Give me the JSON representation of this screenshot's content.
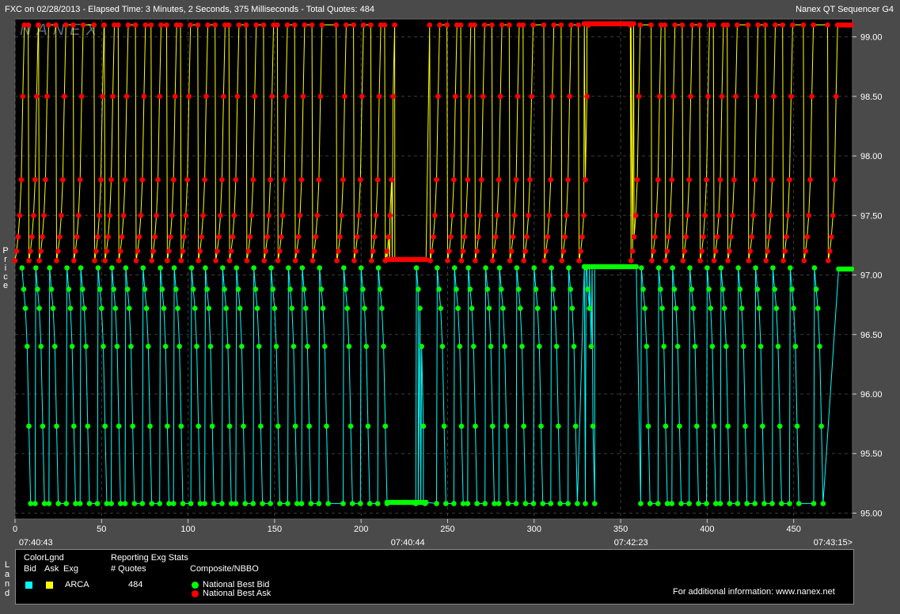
{
  "header": {
    "left": "FXC on 02/28/2013  -  Elapsed Time: 3 Minutes, 2 Seconds, 375 Milliseconds  -  Total Quotes: 484",
    "right": "Nanex QT Sequencer G4",
    "watermark": "NANEX"
  },
  "y_axis_label": "Price",
  "legend": {
    "side_label": "Land",
    "color_legend_title": "ColorLgnd",
    "col_bid": "Bid",
    "col_ask": "Ask",
    "col_exg": "Exg",
    "exchange": "ARCA",
    "bid_color": "#00ffff",
    "ask_color": "#ffff00",
    "stats_title": "Reporting Exg Stats",
    "quotes_header": "# Quotes",
    "quotes_value": "484",
    "composite_title": "Composite/NBBO",
    "nbb_label": "National Best Bid",
    "nbo_label": "National Best Ask",
    "nbb_color": "#00ff00",
    "nbo_color": "#ff0000",
    "info": "For additional information: www.nanex.net"
  },
  "chart_data": {
    "type": "line",
    "xlim": [
      0,
      484
    ],
    "ylim": [
      94.95,
      99.15
    ],
    "x_ticks": [
      0,
      50,
      100,
      150,
      200,
      250,
      300,
      350,
      400,
      450
    ],
    "y_ticks": [
      "95.00",
      "95.50",
      "96.00",
      "96.50",
      "97.00",
      "97.50",
      "98.00",
      "98.50",
      "99.00"
    ],
    "time_labels": [
      {
        "x": 12,
        "label": "07:40:43"
      },
      {
        "x": 227,
        "label": "07:40:44"
      },
      {
        "x": 356,
        "label": "07:42:23"
      },
      {
        "x": 484,
        "label": "07:43:15>"
      }
    ],
    "ask_cycle_starts": [
      0,
      8,
      14,
      24,
      34,
      46,
      52,
      60,
      70,
      79,
      88,
      96,
      106,
      116,
      124,
      134,
      144,
      152,
      162,
      172,
      186,
      196,
      206,
      214,
      240,
      250,
      258,
      266,
      276,
      286,
      294,
      306,
      316,
      326,
      356,
      368,
      376,
      386,
      396,
      404,
      412,
      424,
      434,
      444,
      456,
      470
    ],
    "bid_cycle_starts": [
      4,
      12,
      20,
      30,
      38,
      48,
      56,
      64,
      74,
      84,
      92,
      102,
      110,
      120,
      128,
      138,
      148,
      158,
      166,
      176,
      190,
      200,
      210,
      232,
      244,
      254,
      262,
      272,
      280,
      290,
      300,
      310,
      320,
      330,
      362,
      372,
      380,
      390,
      400,
      408,
      418,
      428,
      438,
      448,
      462
    ],
    "ask_cycle_levels": [
      97.12,
      97.2,
      97.32,
      97.5,
      97.8,
      98.5,
      99.1
    ],
    "bid_cycle_levels": [
      97.06,
      96.88,
      96.72,
      96.4,
      95.73,
      95.08
    ],
    "flat_ask_segments": [
      [
        215,
        238,
        97.13
      ],
      [
        329,
        358,
        99.11
      ],
      [
        476,
        484,
        99.1
      ]
    ],
    "flat_bid_segments": [
      [
        215,
        238,
        95.09
      ],
      [
        329,
        360,
        97.07
      ],
      [
        476,
        484,
        97.05
      ]
    ],
    "series": [
      {
        "name": "National Best Bid",
        "color": "#00ff00",
        "exchange_color": "#00ffff"
      },
      {
        "name": "National Best Ask",
        "color": "#ff0000",
        "exchange_color": "#ffff00"
      }
    ]
  }
}
